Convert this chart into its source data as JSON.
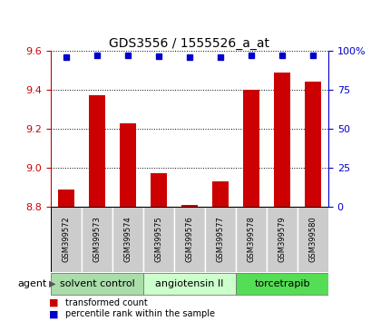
{
  "title": "GDS3556 / 1555526_a_at",
  "samples": [
    "GSM399572",
    "GSM399573",
    "GSM399574",
    "GSM399575",
    "GSM399576",
    "GSM399577",
    "GSM399578",
    "GSM399579",
    "GSM399580"
  ],
  "transformed_counts": [
    8.89,
    9.37,
    9.23,
    8.97,
    8.81,
    8.93,
    9.4,
    9.49,
    9.44
  ],
  "percentile_ranks": [
    96,
    97,
    97,
    96.5,
    96,
    96,
    97,
    97,
    97
  ],
  "ylim_left": [
    8.8,
    9.6
  ],
  "ylim_right": [
    0,
    100
  ],
  "yticks_left": [
    8.8,
    9.0,
    9.2,
    9.4,
    9.6
  ],
  "yticks_right": [
    0,
    25,
    50,
    75,
    100
  ],
  "bar_color": "#cc0000",
  "dot_color": "#0000cc",
  "agent_groups": [
    {
      "label": "solvent control",
      "samples": [
        0,
        1,
        2
      ],
      "color": "#aaddaa"
    },
    {
      "label": "angiotensin II",
      "samples": [
        3,
        4,
        5
      ],
      "color": "#ccffcc"
    },
    {
      "label": "torcetrapib",
      "samples": [
        6,
        7,
        8
      ],
      "color": "#55dd55"
    }
  ],
  "legend_bar_label": "transformed count",
  "legend_dot_label": "percentile rank within the sample",
  "agent_label": "agent",
  "background_plot": "#ffffff",
  "tick_label_color_left": "#cc0000",
  "tick_label_color_right": "#0000cc",
  "grid_color": "#000000",
  "sample_bg_color": "#cccccc",
  "title_fontsize": 10,
  "tick_fontsize": 8,
  "sample_fontsize": 6,
  "agent_fontsize": 8,
  "legend_fontsize": 7
}
